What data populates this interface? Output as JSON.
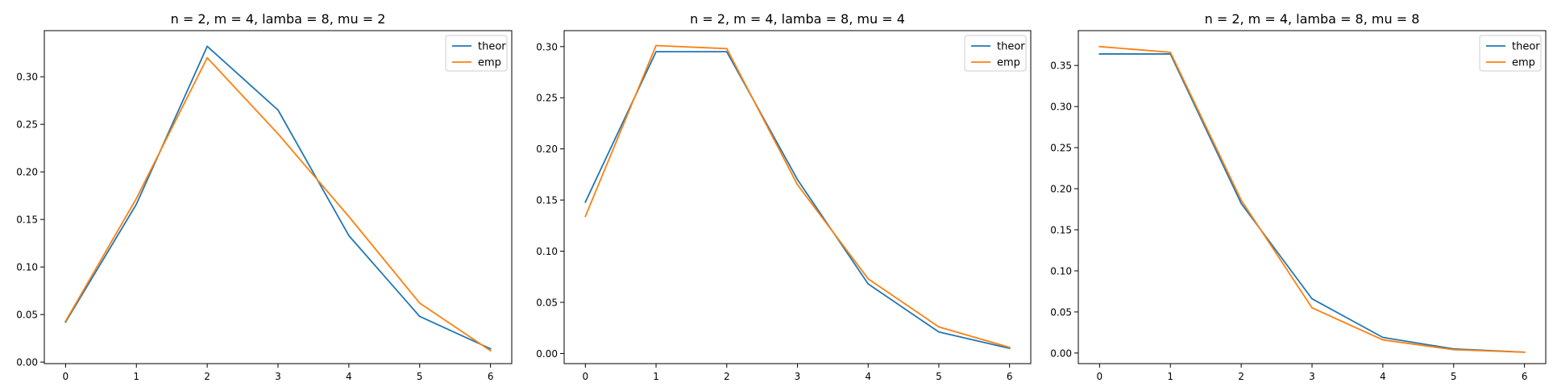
{
  "colors": {
    "theor": "#1f77b4",
    "emp": "#ff7f0e",
    "axes": "#000000",
    "background": "#ffffff"
  },
  "chart_data": [
    {
      "type": "line",
      "title": "n = 2, m = 4, lamba = 8, mu = 2",
      "xlabel": "",
      "ylabel": "",
      "x": [
        0,
        1,
        2,
        3,
        4,
        5,
        6
      ],
      "xticks": [
        "0",
        "1",
        "2",
        "3",
        "4",
        "5",
        "6"
      ],
      "yticks": [
        "0.00",
        "0.05",
        "0.10",
        "0.15",
        "0.20",
        "0.25",
        "0.30"
      ],
      "ytick_values": [
        0,
        0.05,
        0.1,
        0.15,
        0.2,
        0.25,
        0.3
      ],
      "xlim": [
        -0.3,
        6.3
      ],
      "ylim": [
        -0.0016,
        0.3485
      ],
      "grid": false,
      "legend": "top-right",
      "series": [
        {
          "name": "theor",
          "color": "#1f77b4",
          "values": [
            0.042,
            0.166,
            0.332,
            0.265,
            0.133,
            0.048,
            0.014
          ]
        },
        {
          "name": "emp",
          "color": "#ff7f0e",
          "values": [
            0.043,
            0.172,
            0.32,
            0.24,
            0.153,
            0.062,
            0.012
          ]
        }
      ]
    },
    {
      "type": "line",
      "title": "n = 2, m = 4, lamba = 8, mu = 4",
      "xlabel": "",
      "ylabel": "",
      "x": [
        0,
        1,
        2,
        3,
        4,
        5,
        6
      ],
      "xticks": [
        "0",
        "1",
        "2",
        "3",
        "4",
        "5",
        "6"
      ],
      "yticks": [
        "0.00",
        "0.05",
        "0.10",
        "0.15",
        "0.20",
        "0.25",
        "0.30"
      ],
      "ytick_values": [
        0,
        0.05,
        0.1,
        0.15,
        0.2,
        0.25,
        0.3
      ],
      "xlim": [
        -0.3,
        6.3
      ],
      "ylim": [
        -0.0099,
        0.3156
      ],
      "grid": false,
      "legend": "top-right",
      "series": [
        {
          "name": "theor",
          "color": "#1f77b4",
          "values": [
            0.148,
            0.295,
            0.295,
            0.17,
            0.068,
            0.021,
            0.005
          ]
        },
        {
          "name": "emp",
          "color": "#ff7f0e",
          "values": [
            0.134,
            0.301,
            0.298,
            0.165,
            0.073,
            0.026,
            0.006
          ]
        }
      ]
    },
    {
      "type": "line",
      "title": "n = 2, m = 4, lamba = 8, mu = 8",
      "xlabel": "",
      "ylabel": "",
      "x": [
        0,
        1,
        2,
        3,
        4,
        5,
        6
      ],
      "xticks": [
        "0",
        "1",
        "2",
        "3",
        "4",
        "5",
        "6"
      ],
      "yticks": [
        "0.00",
        "0.05",
        "0.10",
        "0.15",
        "0.20",
        "0.25",
        "0.30",
        "0.35"
      ],
      "ytick_values": [
        0,
        0.05,
        0.1,
        0.15,
        0.2,
        0.25,
        0.3,
        0.35
      ],
      "xlim": [
        -0.3,
        6.3
      ],
      "ylim": [
        -0.0129,
        0.3924
      ],
      "grid": false,
      "legend": "top-right",
      "series": [
        {
          "name": "theor",
          "color": "#1f77b4",
          "values": [
            0.364,
            0.364,
            0.182,
            0.066,
            0.019,
            0.005,
            0.001
          ]
        },
        {
          "name": "emp",
          "color": "#ff7f0e",
          "values": [
            0.373,
            0.366,
            0.186,
            0.055,
            0.016,
            0.004,
            0.001
          ]
        }
      ]
    }
  ]
}
